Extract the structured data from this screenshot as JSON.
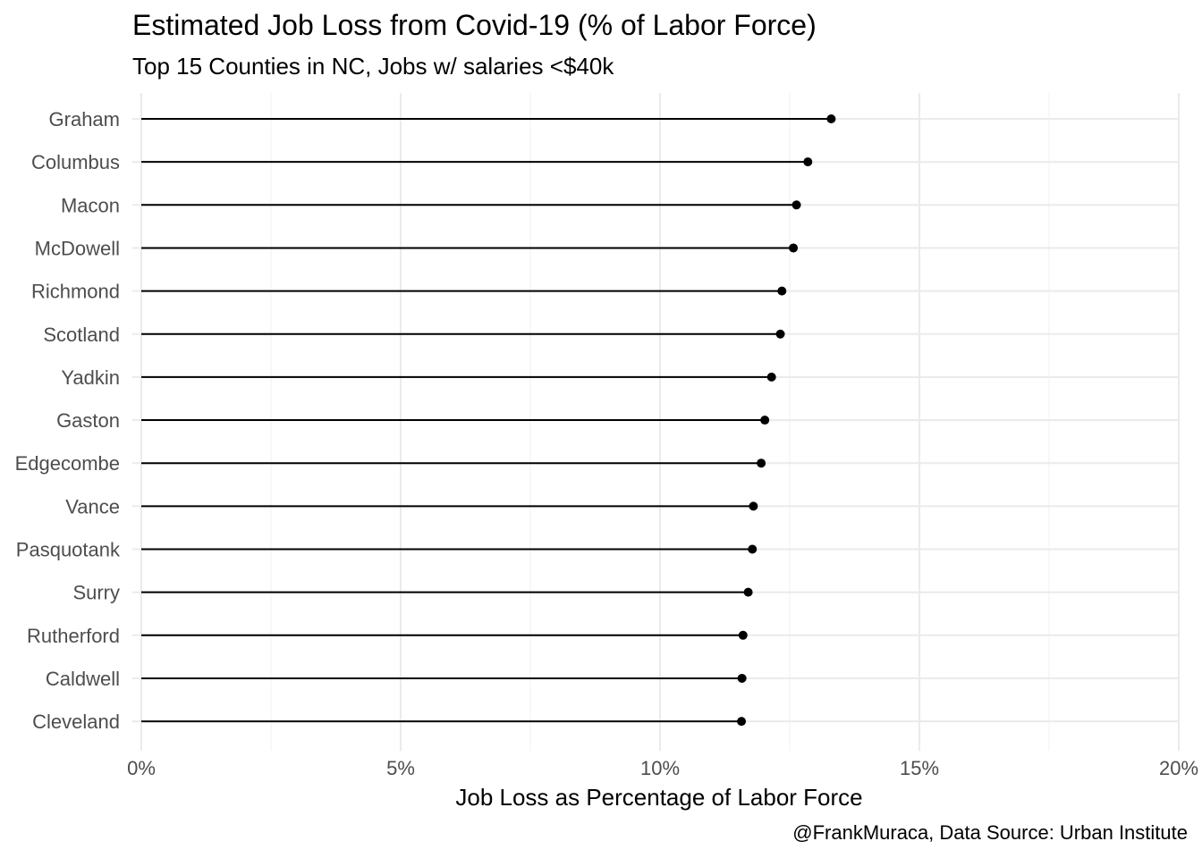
{
  "chart_data": {
    "type": "lollipop",
    "title": "Estimated Job Loss from Covid-19 (% of Labor Force)",
    "subtitle": "Top 15 Counties in NC, Jobs w/ salaries <$40k",
    "caption": "@FrankMuraca, Data Source: Urban Institute",
    "xlabel": "Job Loss as Percentage of Labor Force",
    "ylabel": "",
    "xlim": [
      0,
      20
    ],
    "x_ticks": [
      0,
      5,
      10,
      15,
      20
    ],
    "x_tick_labels": [
      "0%",
      "5%",
      "10%",
      "15%",
      "20%"
    ],
    "grid": true,
    "categories": [
      "Graham",
      "Columbus",
      "Macon",
      "McDowell",
      "Richmond",
      "Scotland",
      "Yadkin",
      "Gaston",
      "Edgecombe",
      "Vance",
      "Pasquotank",
      "Surry",
      "Rutherford",
      "Caldwell",
      "Cleveland"
    ],
    "values": [
      13.3,
      12.85,
      12.63,
      12.57,
      12.35,
      12.32,
      12.15,
      12.02,
      11.95,
      11.8,
      11.78,
      11.7,
      11.6,
      11.58,
      11.57
    ],
    "colors": {
      "line": "#000000",
      "point": "#000000",
      "grid_major": "#ebebeb",
      "grid_minor": "#f2f2f2",
      "axis_text": "#4d4d4d",
      "text": "#000000"
    }
  }
}
